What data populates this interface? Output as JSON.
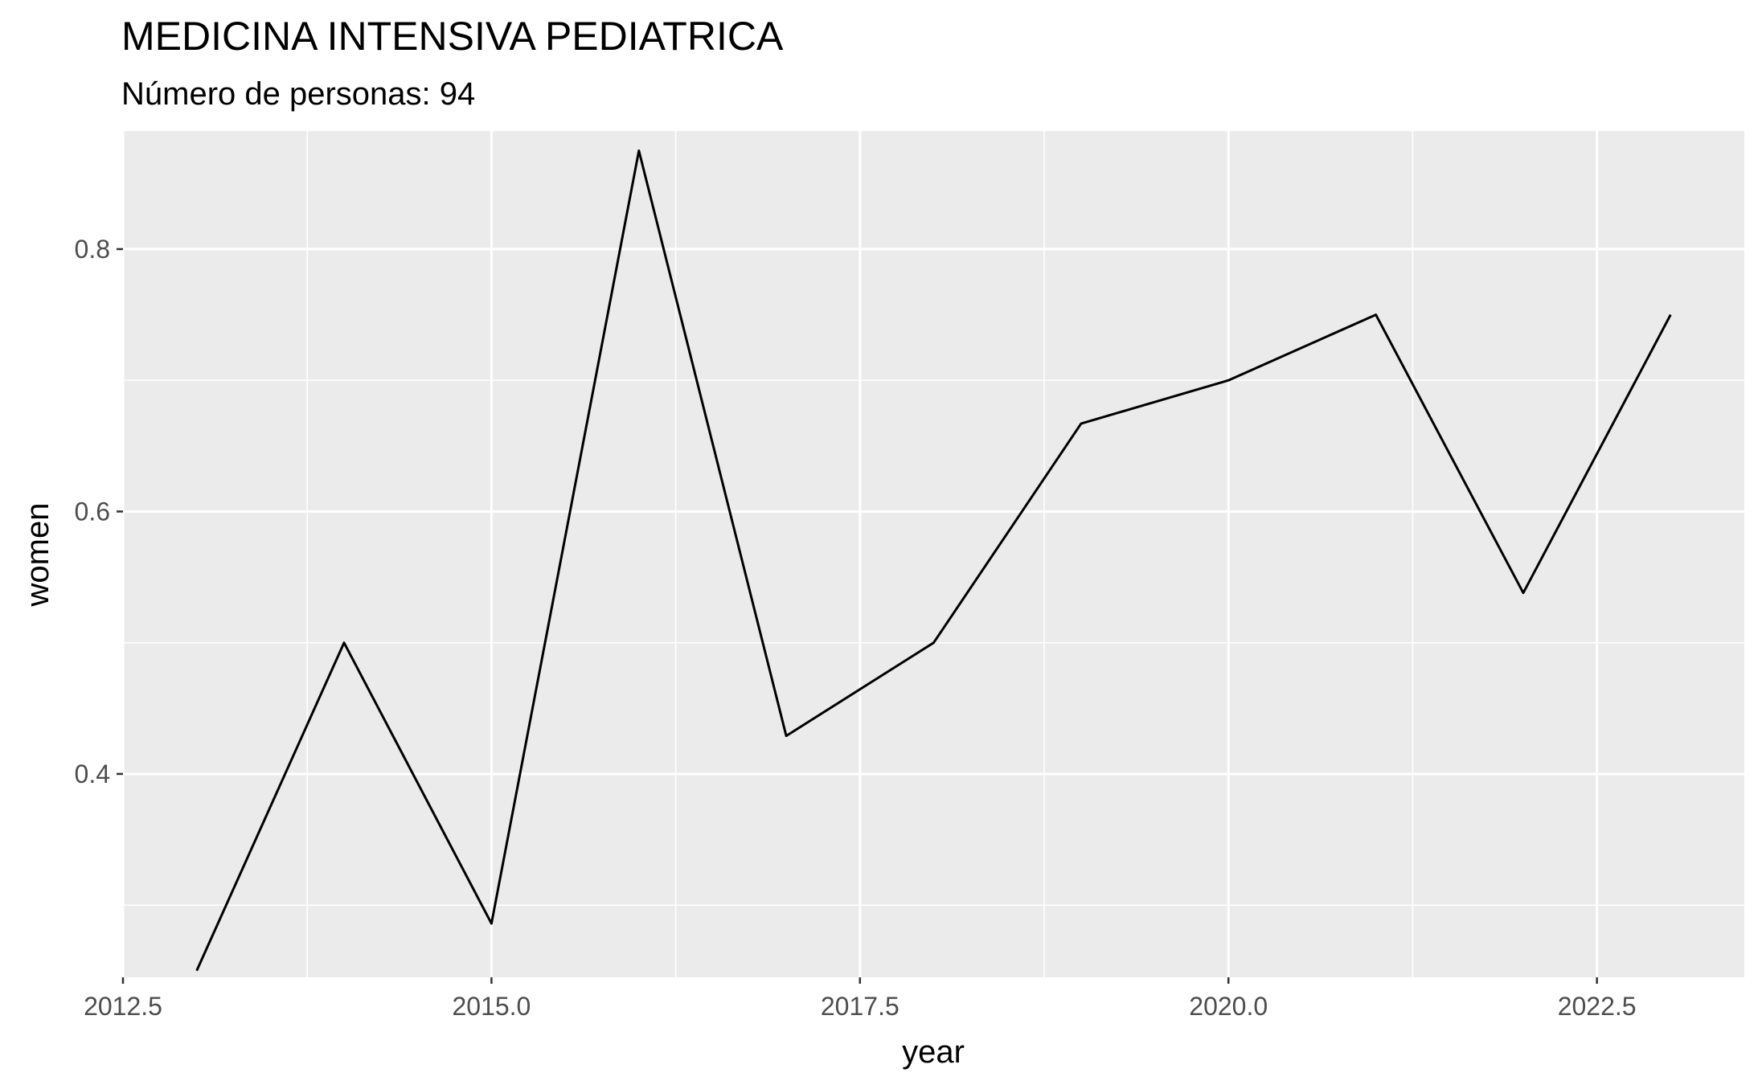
{
  "chart_data": {
    "type": "line",
    "title": "MEDICINA INTENSIVA PEDIATRICA",
    "subtitle": "Número de personas: 94",
    "xlabel": "year",
    "ylabel": "women",
    "xlim": [
      2012.5,
      2023.5
    ],
    "ylim": [
      0.245,
      0.89
    ],
    "x_ticks": [
      2012.5,
      2015.0,
      2017.5,
      2020.0,
      2022.5
    ],
    "x_tick_labels": [
      "2012.5",
      "2015.0",
      "2017.5",
      "2020.0",
      "2022.5"
    ],
    "y_ticks": [
      0.4,
      0.6,
      0.8
    ],
    "y_tick_labels": [
      "0.4",
      "0.6",
      "0.8"
    ],
    "grid": true,
    "series": [
      {
        "x": [
          2013,
          2014,
          2015,
          2016,
          2017,
          2018,
          2019,
          2020,
          2021,
          2022,
          2023
        ],
        "values": [
          0.25,
          0.5,
          0.286,
          0.875,
          0.429,
          0.5,
          0.667,
          0.7,
          0.75,
          0.538,
          0.75
        ],
        "color": "#000000"
      }
    ]
  },
  "colors": {
    "panel": "#ebebeb",
    "grid": "#ffffff",
    "tick_text": "#4d4d4d",
    "line": "#000000"
  }
}
